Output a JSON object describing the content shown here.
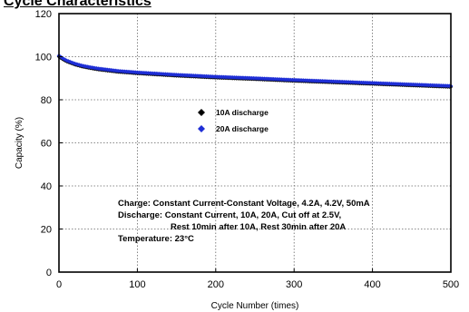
{
  "page": {
    "title": "Cycle Characteristics"
  },
  "chart_data": {
    "type": "line",
    "title": "",
    "xlabel": "Cycle Number (times)",
    "ylabel": "Capacity (%)",
    "xlim": [
      0,
      500
    ],
    "ylim": [
      0,
      120
    ],
    "xticks": [
      0,
      100,
      200,
      300,
      400,
      500
    ],
    "yticks": [
      0,
      20,
      40,
      60,
      80,
      100,
      120
    ],
    "grid": "dotted",
    "legend_placement": "center",
    "series": [
      {
        "name": "10A discharge",
        "marker": "diamond",
        "color": "#000000",
        "x": [
          0,
          5,
          10,
          20,
          30,
          40,
          50,
          75,
          100,
          150,
          200,
          250,
          300,
          350,
          400,
          450,
          500
        ],
        "y": [
          100.0,
          98.8,
          97.8,
          96.4,
          95.4,
          94.7,
          94.1,
          93.0,
          92.3,
          91.2,
          90.3,
          89.6,
          88.8,
          88.1,
          87.4,
          86.7,
          86.0
        ]
      },
      {
        "name": "20A discharge",
        "marker": "diamond",
        "color": "#1f2fd6",
        "x": [
          0,
          5,
          10,
          20,
          30,
          40,
          50,
          75,
          100,
          150,
          200,
          250,
          300,
          350,
          400,
          450,
          500
        ],
        "y": [
          100.5,
          99.2,
          98.2,
          96.8,
          95.8,
          95.1,
          94.5,
          93.4,
          92.7,
          91.6,
          90.7,
          90.0,
          89.2,
          88.5,
          87.8,
          87.1,
          86.4
        ]
      }
    ],
    "annotations": [
      "Charge: Constant Current-Constant Voltage, 4.2A, 4.2V, 50mA",
      "Discharge: Constant Current, 10A, 20A, Cut off at 2.5V,",
      "Rest 10min after 10A, Rest 30min after 20A",
      "Temperature: 23°C"
    ]
  }
}
